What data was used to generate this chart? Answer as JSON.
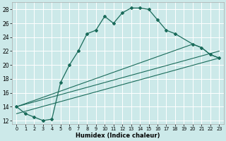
{
  "xlabel": "Humidex (Indice chaleur)",
  "bg_color": "#cce9e9",
  "grid_color": "#ffffff",
  "line_color": "#1a6b5a",
  "xlim": [
    -0.5,
    23.5
  ],
  "ylim": [
    11.5,
    29
  ],
  "yticks": [
    12,
    14,
    16,
    18,
    20,
    22,
    24,
    26,
    28
  ],
  "xticks": [
    0,
    1,
    2,
    3,
    4,
    5,
    6,
    7,
    8,
    9,
    10,
    11,
    12,
    13,
    14,
    15,
    16,
    17,
    18,
    19,
    20,
    21,
    22,
    23
  ],
  "line1_x": [
    0,
    1,
    2,
    3,
    4,
    5,
    6,
    7,
    8,
    9,
    10,
    11,
    12,
    13,
    14,
    15,
    16,
    17,
    18,
    20,
    21,
    22,
    23
  ],
  "line1_y": [
    14,
    13,
    12.5,
    12,
    12.2,
    17.5,
    20,
    22,
    24.5,
    25,
    27,
    26,
    27.5,
    28.2,
    28.2,
    28,
    26.5,
    25,
    24.5,
    23,
    22.5,
    21.5,
    21
  ],
  "line2_x": [
    0,
    23
  ],
  "line2_y": [
    14,
    22
  ],
  "line3_x": [
    0,
    20,
    21,
    22,
    23
  ],
  "line3_y": [
    14,
    23,
    22.5,
    21.5,
    21
  ],
  "line4_x": [
    0,
    23
  ],
  "line4_y": [
    13,
    21
  ]
}
